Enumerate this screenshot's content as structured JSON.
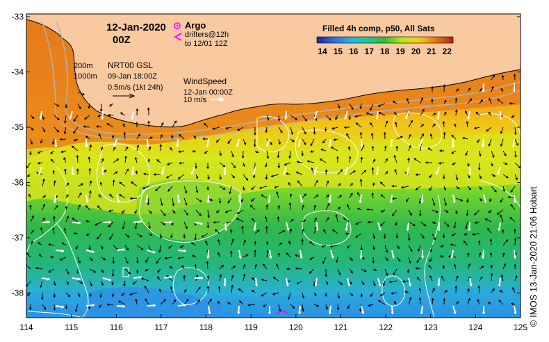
{
  "map": {
    "date": "12-Jan-2020",
    "time": "00Z",
    "argo_label": "Argo",
    "drifters_label": "drifters@12h",
    "drifters_to": "to 12/01 12Z",
    "isobath_200": "200m",
    "isobath_1000": "1000m",
    "nrt_label": "NRT00 GSL",
    "nrt_date": "09-Jan 18:00Z",
    "vector_scale": "0.5m/s (1kt 24h)",
    "wind_label": "WindSpeed",
    "wind_date": "12-Jan 00:00Z",
    "wind_scale": "10 m/s",
    "colorbar_title": "Filled 4h comp, p50, All Sats",
    "colorbar_ticks": [
      "14",
      "15",
      "16",
      "17",
      "18",
      "19",
      "20",
      "21",
      "22"
    ],
    "credit": "© IMOS 13-Jan-2020 21:06 Hobart",
    "lon_ticks": [
      "114",
      "115",
      "116",
      "117",
      "118",
      "119",
      "120",
      "121",
      "122",
      "123",
      "124",
      "125"
    ],
    "lat_ticks": [
      "-33",
      "-34",
      "-35",
      "-36",
      "-37",
      "-38"
    ]
  },
  "colors": {
    "land": "#f9c9a0",
    "isobath": "#b4b4b4",
    "contour": "#ffffff",
    "argo_marker": "#ff00ff",
    "drifter": "#ff00ff",
    "current_arrow": "#000000",
    "wind_arrow": "#ffffff"
  }
}
